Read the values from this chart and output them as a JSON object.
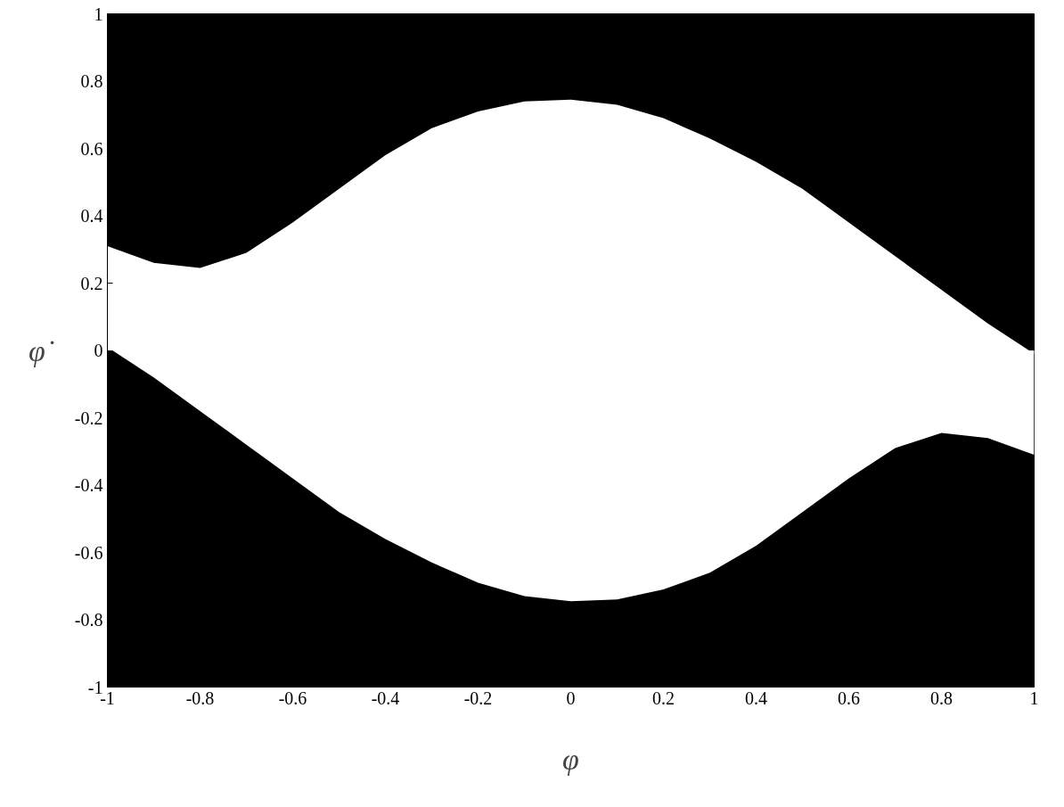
{
  "chart_data": {
    "type": "area",
    "xlabel": "φ",
    "ylabel": "φ̇",
    "x": [
      -1,
      -0.9,
      -0.8,
      -0.7,
      -0.6,
      -0.5,
      -0.4,
      -0.3,
      -0.2,
      -0.1,
      0,
      0.1,
      0.2,
      0.3,
      0.4,
      0.5,
      0.6,
      0.7,
      0.8,
      0.9,
      1
    ],
    "series": [
      {
        "color": "#ffffff",
        "values": [
          0.31,
          0.26,
          0.245,
          0.29,
          0.38,
          0.48,
          0.58,
          0.66,
          0.71,
          0.74,
          0.745,
          0.73,
          0.69,
          0.63,
          0.56,
          0.48,
          0.38,
          0.28,
          0.18,
          0.08,
          -0.01
        ]
      },
      {
        "color": "#ffffff",
        "values": [
          0.01,
          -0.08,
          -0.18,
          -0.28,
          -0.38,
          -0.48,
          -0.56,
          -0.63,
          -0.69,
          -0.73,
          -0.745,
          -0.74,
          -0.71,
          -0.66,
          -0.58,
          -0.48,
          -0.38,
          -0.29,
          -0.245,
          -0.26,
          -0.31
        ]
      }
    ],
    "xlim": [
      -1,
      1
    ],
    "ylim": [
      -1,
      1
    ],
    "xticks": [
      -1,
      -0.8,
      -0.6,
      -0.4,
      -0.2,
      0,
      0.2,
      0.4,
      0.6,
      0.8,
      1
    ],
    "yticks": [
      -1,
      -0.8,
      -0.6,
      -0.4,
      -0.2,
      0,
      0.2,
      0.4,
      0.6,
      0.8,
      1
    ],
    "grid": false
  }
}
